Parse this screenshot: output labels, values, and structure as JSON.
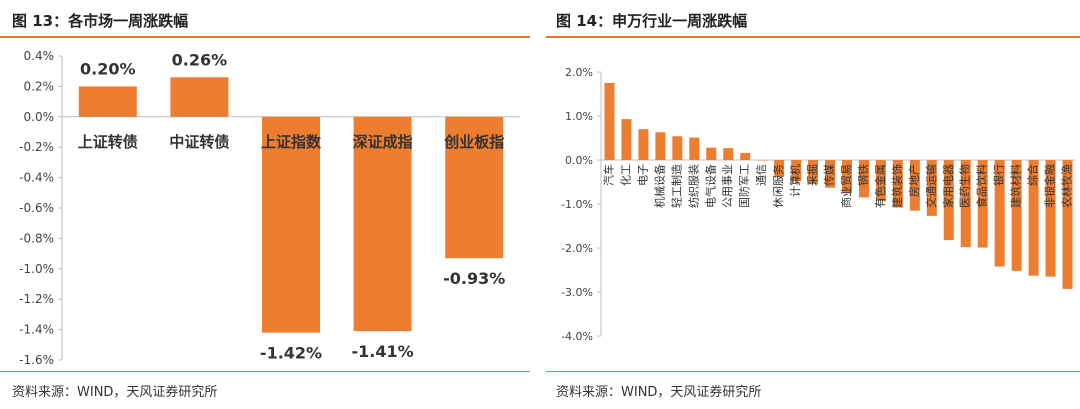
{
  "left": {
    "title": "图 13：各市场一周涨跌幅",
    "source": "资料来源：WIND，天风证券研究所"
  },
  "right": {
    "title": "图 14：申万行业一周涨跌幅",
    "source": "资料来源：WIND，天风证券研究所"
  },
  "colors": {
    "bar": "#ED7D31",
    "accent_rule": "#E07B24",
    "axis": "#BFBFBF",
    "text": "#333333"
  },
  "chart_data": [
    {
      "type": "bar",
      "title": "各市场一周涨跌幅",
      "categories": [
        "上证转债",
        "中证转债",
        "上证指数",
        "深证成指",
        "创业板指"
      ],
      "values": [
        0.2,
        0.26,
        -1.42,
        -1.41,
        -0.93
      ],
      "data_labels": [
        "0.20%",
        "0.26%",
        "-1.42%",
        "-1.41%",
        "-0.93%"
      ],
      "ylim": [
        -1.6,
        0.4
      ],
      "yticks": [
        0.4,
        0.2,
        0.0,
        -0.2,
        -0.4,
        -0.6,
        -0.8,
        -1.0,
        -1.2,
        -1.4,
        -1.6
      ],
      "ytick_labels": [
        "0.4%",
        "0.2%",
        "0.0%",
        "-0.2%",
        "-0.4%",
        "-0.6%",
        "-0.8%",
        "-1.0%",
        "-1.2%",
        "-1.4%",
        "-1.6%"
      ],
      "grid": false,
      "legend": "none"
    },
    {
      "type": "bar",
      "title": "申万行业一周涨跌幅",
      "categories": [
        "汽车",
        "化工",
        "电子",
        "机械设备",
        "轻工制造",
        "纺织服装",
        "电气设备",
        "公用事业",
        "国防军工",
        "通信",
        "休闲服务",
        "计算机",
        "采掘",
        "传媒",
        "商业贸易",
        "钢铁",
        "有色金属",
        "建筑装饰",
        "房地产",
        "交通运输",
        "家用电器",
        "医药生物",
        "食品饮料",
        "银行",
        "建筑材料",
        "综合",
        "非银金融",
        "农林牧渔"
      ],
      "values": [
        1.75,
        0.93,
        0.7,
        0.63,
        0.54,
        0.51,
        0.28,
        0.27,
        0.16,
        0.0,
        -0.38,
        -0.48,
        -0.55,
        -0.63,
        -0.75,
        -0.85,
        -0.93,
        -1.08,
        -1.15,
        -1.27,
        -1.82,
        -1.98,
        -1.99,
        -2.42,
        -2.52,
        -2.63,
        -2.65,
        -2.93
      ],
      "ylim": [
        -4.0,
        2.0
      ],
      "yticks": [
        2.0,
        1.0,
        0.0,
        -1.0,
        -2.0,
        -3.0,
        -4.0
      ],
      "ytick_labels": [
        "2.0%",
        "1.0%",
        "0.0%",
        "-1.0%",
        "-2.0%",
        "-3.0%",
        "-4.0%"
      ],
      "grid": false,
      "legend": "none"
    }
  ]
}
